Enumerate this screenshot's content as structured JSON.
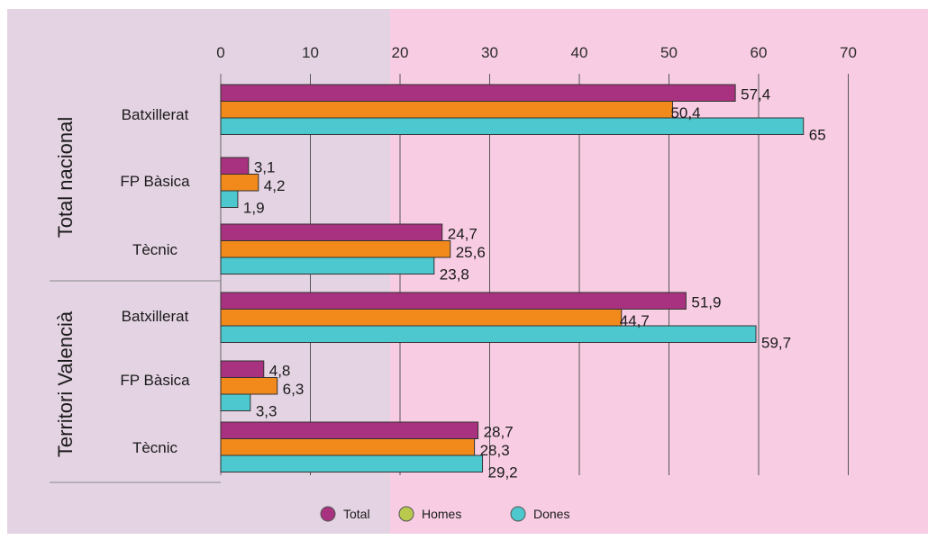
{
  "colors": {
    "background_left": "#e4d3e3",
    "background_right": "#f8cde3",
    "total": "#a8327f",
    "homes_bar": "#f2891b",
    "homes_legend": "#b9c94e",
    "dones": "#4ec8cf",
    "grid": "#555555"
  },
  "chart_data": {
    "type": "bar",
    "orientation": "horizontal",
    "title": "",
    "xlabel": "",
    "ylabel": "",
    "xlim": [
      0,
      70
    ],
    "x_ticks": [
      "0",
      "10",
      "20",
      "30",
      "40",
      "50",
      "60",
      "70"
    ],
    "grid": true,
    "legend_position": "bottom",
    "groups": [
      {
        "name": "Total nacional",
        "categories": [
          "Batxillerat",
          "FP Bàsica",
          "Tècnic"
        ]
      },
      {
        "name": "Territori Valencià",
        "categories": [
          "Batxillerat",
          "FP Bàsica",
          "Tècnic"
        ]
      }
    ],
    "series": [
      {
        "name": "Total",
        "values": [
          57.4,
          3.1,
          24.7,
          51.9,
          4.8,
          28.7
        ],
        "labels": [
          "57,4",
          "3,1",
          "24,7",
          "51,9",
          "4,8",
          "28,7"
        ]
      },
      {
        "name": "Homes",
        "values": [
          50.4,
          4.2,
          25.6,
          44.7,
          6.3,
          28.3
        ],
        "labels": [
          "50,4",
          "4,2",
          "25,6",
          "44,7",
          "6,3",
          "28,3"
        ]
      },
      {
        "name": "Dones",
        "values": [
          65,
          1.9,
          23.8,
          59.7,
          3.3,
          29.2
        ],
        "labels": [
          "65",
          "1,9",
          "23,8",
          "59,7",
          "3,3",
          "29,2"
        ]
      }
    ]
  }
}
